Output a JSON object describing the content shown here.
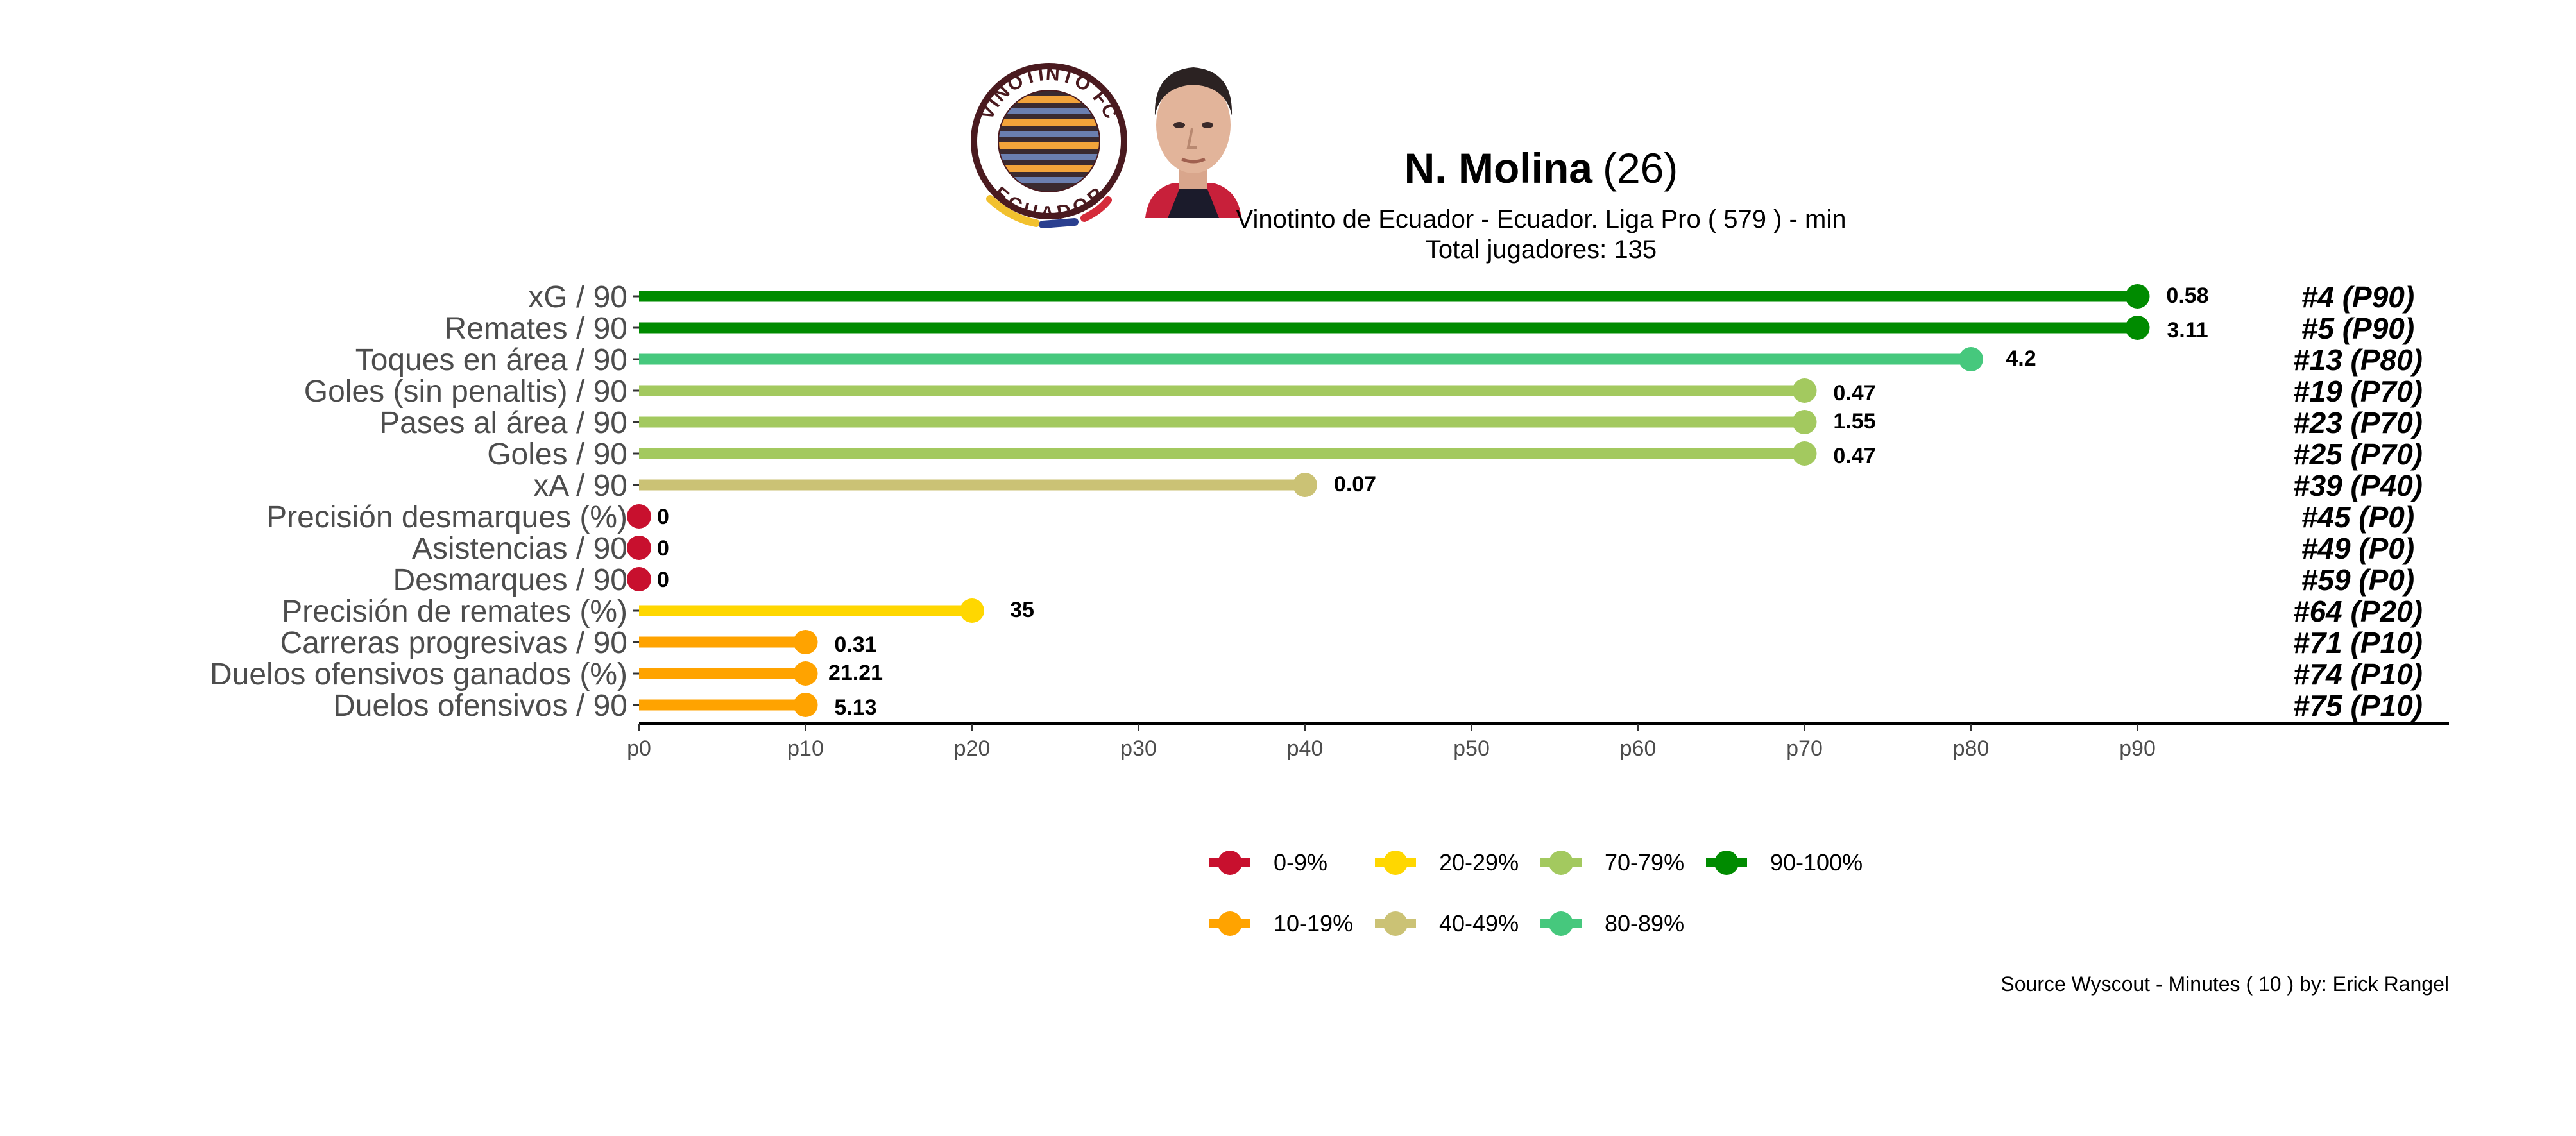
{
  "header": {
    "player_name": "N. Molina",
    "player_age": "(26)",
    "subtitle_line1": "Vinotinto de Ecuador  -  Ecuador. Liga Pro  ( 579 ) - min",
    "subtitle_line2": "Total jugadores:  135",
    "logo_ring_text_top": "VINOTINTO FC",
    "logo_ring_text_bottom": "ECUADOR"
  },
  "source": "Source Wyscout - Minutes ( 10 ) by: Erick Rangel",
  "chart_data": {
    "type": "lollipop",
    "xlim": [
      0,
      109
    ],
    "x_ticks": [
      {
        "value": 0,
        "label": "p0"
      },
      {
        "value": 10,
        "label": "p10"
      },
      {
        "value": 20,
        "label": "p20"
      },
      {
        "value": 30,
        "label": "p30"
      },
      {
        "value": 40,
        "label": "p40"
      },
      {
        "value": 50,
        "label": "p50"
      },
      {
        "value": 60,
        "label": "p60"
      },
      {
        "value": 70,
        "label": "p70"
      },
      {
        "value": 80,
        "label": "p80"
      },
      {
        "value": 90,
        "label": "p90"
      }
    ],
    "grid": false,
    "legend_position": "bottom",
    "legend": [
      {
        "label": "0-9%",
        "color": "#c8102e"
      },
      {
        "label": "10-19%",
        "color": "#ffa300"
      },
      {
        "label": "20-29%",
        "color": "#ffd700"
      },
      {
        "label": "40-49%",
        "color": "#cbc275"
      },
      {
        "label": "70-79%",
        "color": "#a3c95f"
      },
      {
        "label": "80-89%",
        "color": "#46c87d"
      },
      {
        "label": "90-100%",
        "color": "#008b00"
      }
    ],
    "metrics": [
      {
        "label": "xG / 90",
        "percentile": 90,
        "value": "0.58",
        "rank": "#4 (P90)",
        "color": "#008b00"
      },
      {
        "label": "Remates / 90",
        "percentile": 90,
        "value": "3.11",
        "rank": "#5 (P90)",
        "color": "#008b00"
      },
      {
        "label": "Toques en área / 90",
        "percentile": 80,
        "value": "4.2",
        "rank": "#13 (P80)",
        "color": "#46c87d"
      },
      {
        "label": "Goles (sin penaltis) / 90",
        "percentile": 70,
        "value": "0.47",
        "rank": "#19 (P70)",
        "color": "#a3c95f"
      },
      {
        "label": "Pases al área / 90",
        "percentile": 70,
        "value": "1.55",
        "rank": "#23 (P70)",
        "color": "#a3c95f"
      },
      {
        "label": "Goles / 90",
        "percentile": 70,
        "value": "0.47",
        "rank": "#25 (P70)",
        "color": "#a3c95f"
      },
      {
        "label": "xA / 90",
        "percentile": 40,
        "value": "0.07",
        "rank": "#39 (P40)",
        "color": "#cbc275"
      },
      {
        "label": "Precisión desmarques (%)",
        "percentile": 0,
        "value": "0",
        "rank": "#45 (P0)",
        "color": "#c8102e"
      },
      {
        "label": "Asistencias / 90",
        "percentile": 0,
        "value": "0",
        "rank": "#49 (P0)",
        "color": "#c8102e"
      },
      {
        "label": "Desmarques / 90",
        "percentile": 0,
        "value": "0",
        "rank": "#59 (P0)",
        "color": "#c8102e"
      },
      {
        "label": "Precisión de remates (%)",
        "percentile": 20,
        "value": "35",
        "rank": "#64 (P20)",
        "color": "#ffd700"
      },
      {
        "label": "Carreras progresivas / 90",
        "percentile": 10,
        "value": "0.31",
        "rank": "#71 (P10)",
        "color": "#ffa300"
      },
      {
        "label": "Duelos ofensivos ganados (%)",
        "percentile": 10,
        "value": "21.21",
        "rank": "#74 (P10)",
        "color": "#ffa300"
      },
      {
        "label": "Duelos ofensivos / 90",
        "percentile": 10,
        "value": "5.13",
        "rank": "#75 (P10)",
        "color": "#ffa300"
      }
    ]
  }
}
